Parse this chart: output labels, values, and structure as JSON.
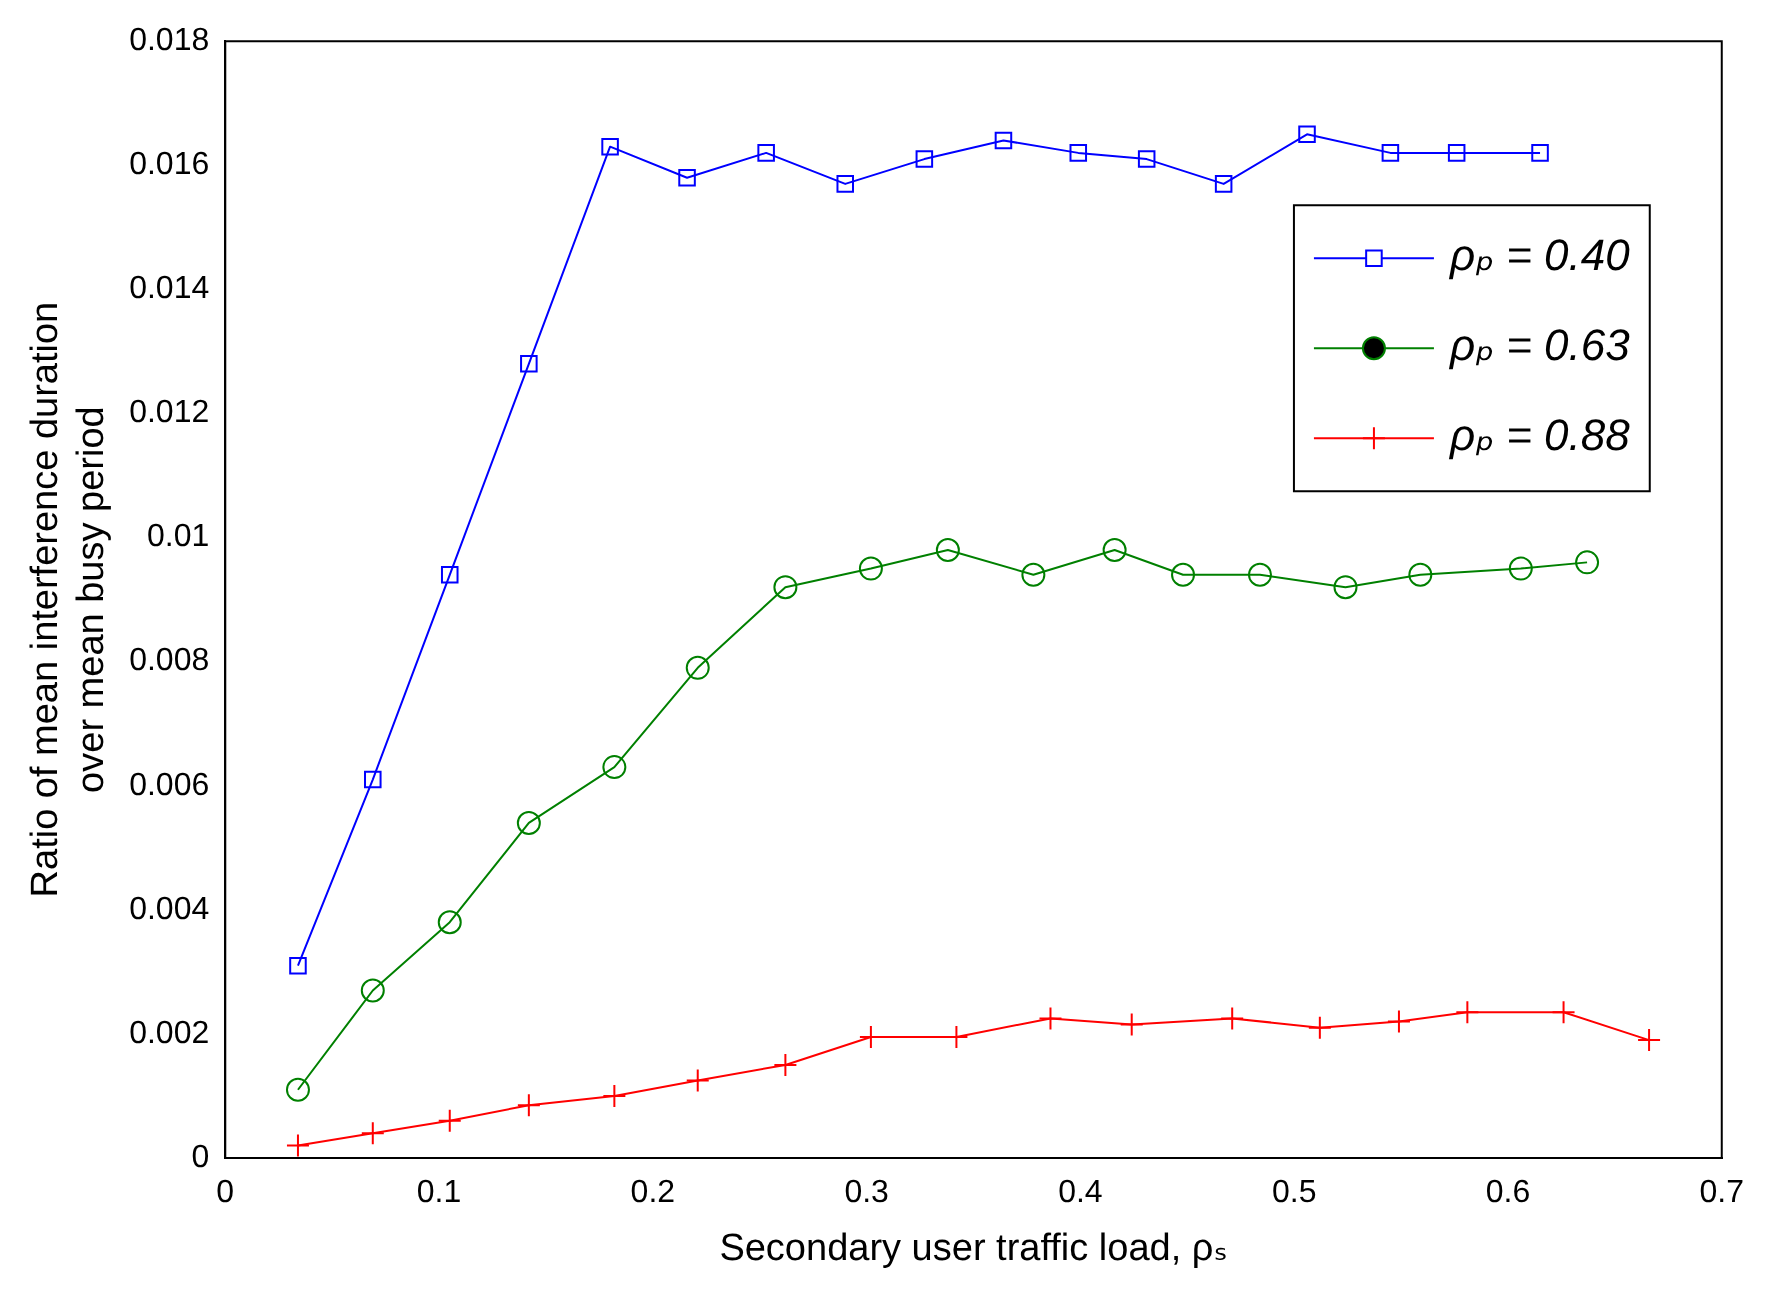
{
  "chart_data": {
    "type": "line",
    "xlabel": "Secondary user traffic load, ρₛ",
    "ylabel": "Ratio of mean interference duration\nover mean busy period",
    "xlim": [
      0,
      0.7
    ],
    "xticks": [
      0,
      0.1,
      0.2,
      0.3,
      0.4,
      0.5,
      0.6,
      0.7
    ],
    "ylim": [
      0,
      0.018
    ],
    "yticks": [
      0,
      0.002,
      0.004,
      0.006,
      0.008,
      0.01,
      0.012,
      0.014,
      0.016,
      0.018
    ],
    "grid": false,
    "legend": "top right",
    "line_style": "solid",
    "series": [
      {
        "name": "ρₚ = 0.40",
        "color": "#0000ff",
        "marker": "square",
        "x": [
          0.034,
          0.069,
          0.105,
          0.142,
          0.18,
          0.216,
          0.253,
          0.29,
          0.327,
          0.364,
          0.399,
          0.431,
          0.467,
          0.506,
          0.545,
          0.576,
          0.615
        ],
        "values": [
          0.0031,
          0.0061,
          0.0094,
          0.0128,
          0.0163,
          0.0158,
          0.0162,
          0.0157,
          0.0161,
          0.0164,
          0.0162,
          0.0161,
          0.0157,
          0.0165,
          0.0162,
          0.0162,
          0.0162
        ]
      },
      {
        "name": "ρₚ = 0.63",
        "color": "#008000",
        "marker": "circle",
        "x": [
          0.034,
          0.069,
          0.105,
          0.142,
          0.182,
          0.221,
          0.262,
          0.302,
          0.338,
          0.378,
          0.416,
          0.448,
          0.484,
          0.524,
          0.559,
          0.606,
          0.637
        ],
        "values": [
          0.0011,
          0.0027,
          0.0038,
          0.0054,
          0.0063,
          0.0079,
          0.0092,
          0.0095,
          0.0098,
          0.0094,
          0.0098,
          0.0094,
          0.0094,
          0.0092,
          0.0094,
          0.0095,
          0.0096
        ]
      },
      {
        "name": "ρₚ = 0.88",
        "color": "#ff0000",
        "marker": "cross",
        "x": [
          0.034,
          0.069,
          0.105,
          0.142,
          0.182,
          0.221,
          0.262,
          0.302,
          0.342,
          0.386,
          0.424,
          0.471,
          0.512,
          0.549,
          0.581,
          0.626,
          0.666
        ],
        "values": [
          0.0002,
          0.0004,
          0.0006,
          0.00085,
          0.001,
          0.00125,
          0.0015,
          0.00195,
          0.00195,
          0.00225,
          0.00215,
          0.00225,
          0.0021,
          0.0022,
          0.00235,
          0.00235,
          0.0019
        ]
      }
    ]
  }
}
